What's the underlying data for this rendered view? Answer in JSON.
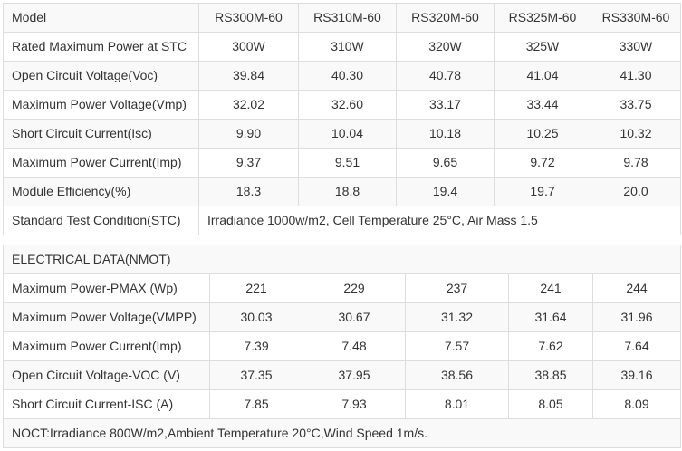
{
  "stc": {
    "header": [
      "Model",
      "RS300M-60",
      "RS310M-60",
      "RS320M-60",
      "RS325M-60",
      "RS330M-60"
    ],
    "rows": [
      {
        "label": "Rated Maximum Power at STC",
        "values": [
          "300W",
          "310W",
          "320W",
          "325W",
          "330W"
        ]
      },
      {
        "label": "Open Circuit Voltage(Voc)",
        "values": [
          "39.84",
          "40.30",
          "40.78",
          "41.04",
          "41.30"
        ]
      },
      {
        "label": "Maximum Power Voltage(Vmp)",
        "values": [
          "32.02",
          "32.60",
          "33.17",
          "33.44",
          "33.75"
        ]
      },
      {
        "label": "Short Circuit Current(Isc)",
        "values": [
          "9.90",
          "10.04",
          "10.18",
          "10.25",
          "10.32"
        ]
      },
      {
        "label": "Maximum Power Current(Imp)",
        "values": [
          "9.37",
          "9.51",
          "9.65",
          "9.72",
          "9.78"
        ]
      },
      {
        "label": "Module Efficiency(%)",
        "values": [
          "18.3",
          "18.8",
          "19.4",
          "19.7",
          "20.0"
        ]
      }
    ],
    "condition": {
      "label": "Standard Test Condition(STC)",
      "text": "Irradiance 1000w/m2, Cell Temperature 25°C, Air Mass 1.5"
    }
  },
  "nmot": {
    "title": "ELECTRICAL DATA(NMOT)",
    "rows": [
      {
        "label": "Maximum Power-PMAX (Wp)",
        "values": [
          "221",
          "229",
          "237",
          "241",
          "244"
        ]
      },
      {
        "label": "Maximum Power Voltage(VMPP)",
        "values": [
          "30.03",
          "30.67",
          "31.32",
          "31.64",
          "31.96"
        ]
      },
      {
        "label": "Maximum Power Current(Imp)",
        "values": [
          "7.39",
          "7.48",
          "7.57",
          "7.62",
          "7.64"
        ]
      },
      {
        "label": "Open Circuit Voltage-VOC (V)",
        "values": [
          "37.35",
          "37.95",
          "38.56",
          "38.85",
          "39.16"
        ]
      },
      {
        "label": "Short Circuit Current-ISC (A)",
        "values": [
          "7.85",
          "7.93",
          "8.01",
          "8.05",
          "8.09"
        ]
      }
    ],
    "note": "NOCT:Irradiance 800W/m2,Ambient Temperature 20°C,Wind Speed 1m/s."
  }
}
